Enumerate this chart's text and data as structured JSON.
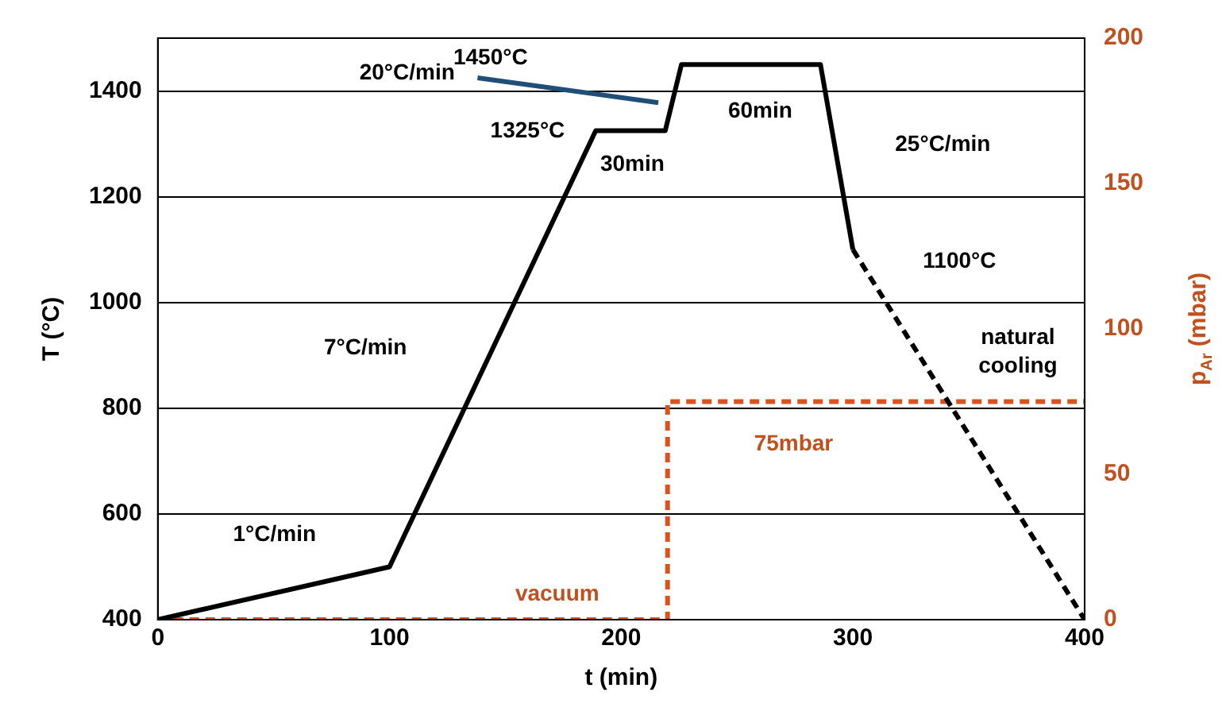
{
  "chart_data": {
    "type": "line",
    "xlabel": "t (min)",
    "ylabel": "T (°C)",
    "y2label": "p$_{Ar}$ (mbar)",
    "xlim": [
      0,
      400
    ],
    "xticks": [
      0,
      100,
      200,
      300,
      400
    ],
    "ylim": [
      400,
      1500
    ],
    "yticks": [
      400,
      600,
      800,
      1000,
      1200,
      1400
    ],
    "y2lim": [
      0,
      200
    ],
    "y2ticks": [
      0,
      50,
      100,
      150,
      200
    ],
    "grid": "y",
    "legend": false,
    "marker": "none",
    "series": [
      {
        "color": "#000000",
        "line_style": "solid",
        "x": [
          0,
          100,
          189,
          219,
          226,
          286,
          300
        ],
        "values": [
          400,
          500,
          1325,
          1325,
          1450,
          1450,
          1100
        ]
      },
      {
        "color": "#000000",
        "line_style": "dashed",
        "x": [
          300,
          400
        ],
        "values": [
          1100,
          400
        ]
      },
      {
        "color": "#1f4e79",
        "line_style": "solid",
        "x": [
          138,
          216
        ],
        "values": [
          1425,
          1378
        ]
      },
      {
        "color": "#d9531e",
        "line_style": "dashed",
        "axis": "y2",
        "x": [
          0,
          220,
          220,
          400
        ],
        "values": [
          0,
          0,
          75,
          75
        ]
      }
    ],
    "annotations": [
      "20°C/min",
      "1450°C",
      "1325°C",
      "30min",
      "60min",
      "25°C/min",
      "1100°C",
      "7°C/min",
      "natural\ncooling",
      "1°C/min",
      "75mbar",
      "vacuum"
    ]
  }
}
